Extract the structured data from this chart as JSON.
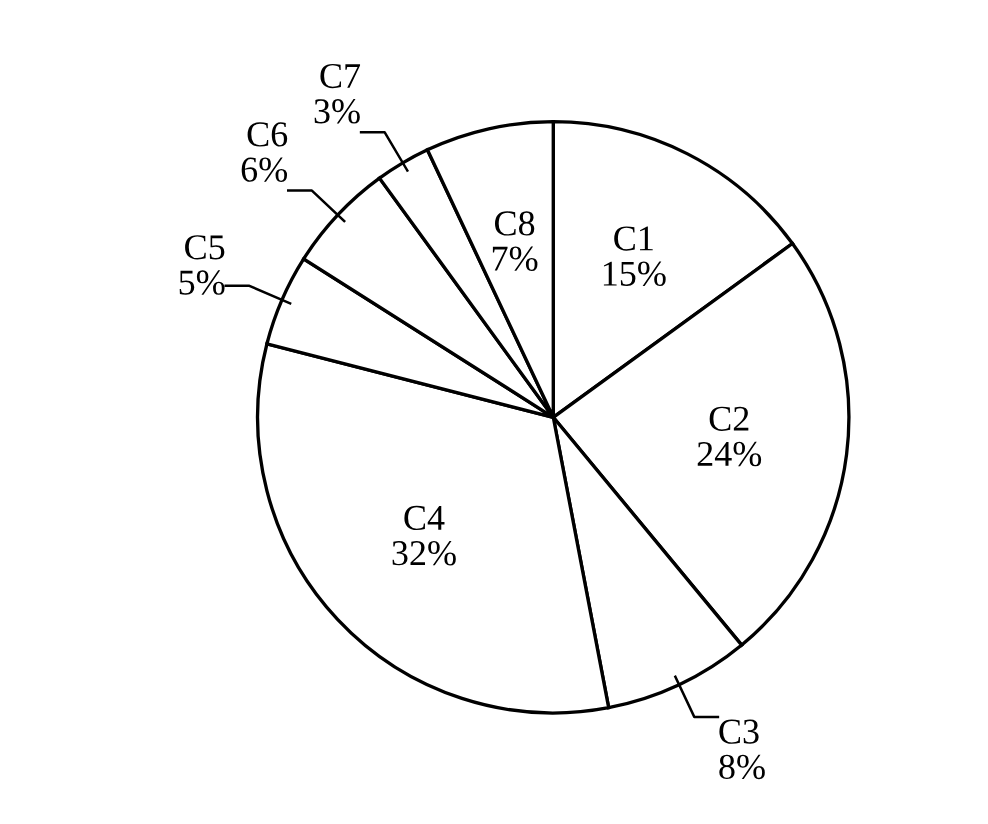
{
  "chart_data": {
    "type": "pie",
    "categories": [
      "C1",
      "C2",
      "C3",
      "C4",
      "C5",
      "C6",
      "C7",
      "C8"
    ],
    "values": [
      15,
      24,
      8,
      32,
      5,
      6,
      3,
      7
    ],
    "value_labels": [
      "15%",
      "24%",
      "8%",
      "32%",
      "5%",
      "6%",
      "3%",
      "7%"
    ],
    "colors": [
      "#ffffff",
      "#ffffff",
      "#ffffff",
      "#ffffff",
      "#ffffff",
      "#ffffff",
      "#ffffff",
      "#ffffff"
    ],
    "legend": false
  }
}
